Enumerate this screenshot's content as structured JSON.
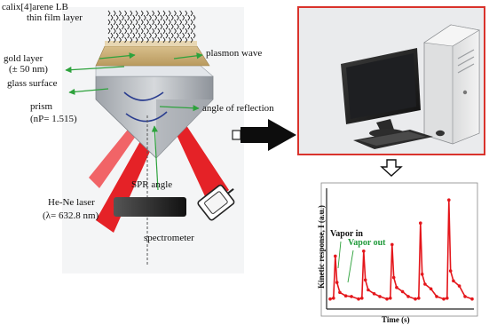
{
  "schematic": {
    "labels": {
      "film_line1": "calix[4]arene LB",
      "film_line2": "thin film layer",
      "gold_line1": "gold layer",
      "gold_line2": "(± 50 nm)",
      "glass": "glass surface",
      "prism_line1": "prism",
      "prism_line2": "(nP= 1.515)",
      "plasmon": "plasmon wave",
      "reflection": "angle of reflection",
      "spr": "SPR angle",
      "laser_line1": "He-Ne laser",
      "laser_line2": "(λ= 632.8 nm)",
      "spectrometer": "spectrometer"
    },
    "colors": {
      "beam": "#e4161b",
      "gold": "#c9ab74",
      "glass": "#e3e6ea",
      "prism": "#bfc3c8",
      "arrow_green": "#2da23c",
      "laser": "#2a2a2a"
    }
  },
  "computer": {
    "frame_color": "#d9332c"
  },
  "chart_data": {
    "type": "line",
    "xlabel": "Time (s)",
    "ylabel": "Kinetic response, I (a.u.)",
    "annotations": [
      "Vapor in",
      "Vapor out"
    ],
    "series_color": "#e4161b",
    "baseline": 1.0,
    "cycles": [
      {
        "peak": 3.6,
        "tail": 1.4
      },
      {
        "peak": 3.9,
        "tail": 1.55
      },
      {
        "peak": 4.3,
        "tail": 1.7
      },
      {
        "peak": 5.6,
        "tail": 1.9
      },
      {
        "peak": 7.0,
        "tail": 2.1
      }
    ],
    "ylim": [
      0.5,
      7.6
    ]
  }
}
